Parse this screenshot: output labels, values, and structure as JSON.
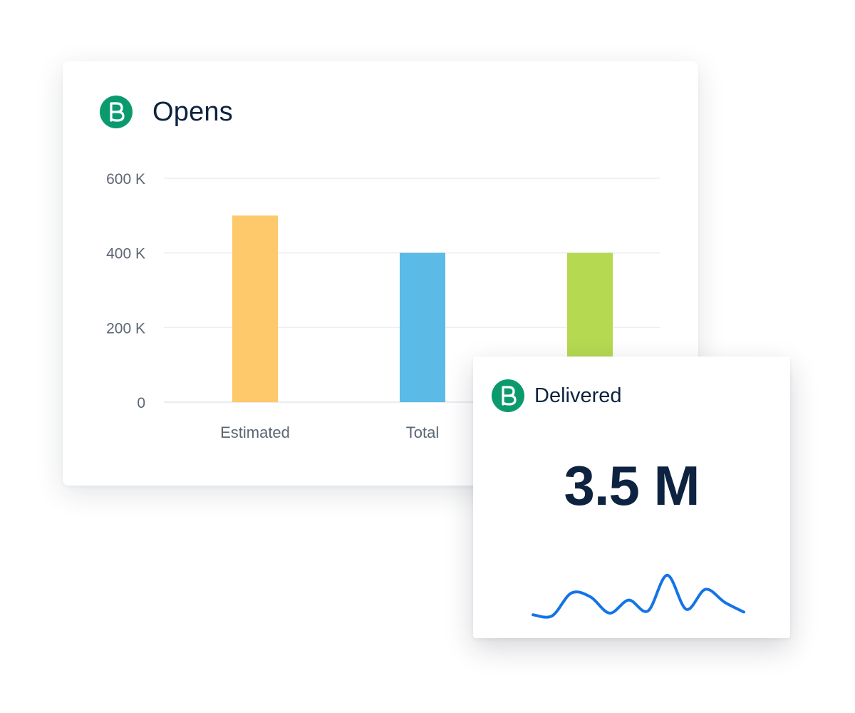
{
  "brand": {
    "logo_icon": "brevo-b-logo-icon",
    "color": "#0b9a6d"
  },
  "opens_widget": {
    "title": "Opens"
  },
  "delivered_widget": {
    "title": "Delivered",
    "value": "3.5 M",
    "sparkline_color": "#1474e6"
  },
  "chart_data": [
    {
      "type": "bar",
      "title": "Opens",
      "categories": [
        "Estimated",
        "Total",
        ""
      ],
      "values": [
        500000,
        400000,
        400000
      ],
      "colors": [
        "#fdc96a",
        "#5bbae6",
        "#b5d951"
      ],
      "ylim": [
        0,
        600000
      ],
      "yticks": [
        0,
        200000,
        400000,
        600000
      ],
      "ytick_labels": [
        "0",
        "200 K",
        "400 K",
        "600 K"
      ],
      "grid": true,
      "xlabel": "",
      "ylabel": ""
    },
    {
      "type": "line",
      "title": "Delivered",
      "values": [
        0.05,
        0.03,
        0.45,
        0.38,
        0.08,
        0.32,
        0.12,
        0.78,
        0.15,
        0.52,
        0.28,
        0.1
      ],
      "axes": false,
      "grid": false
    }
  ]
}
